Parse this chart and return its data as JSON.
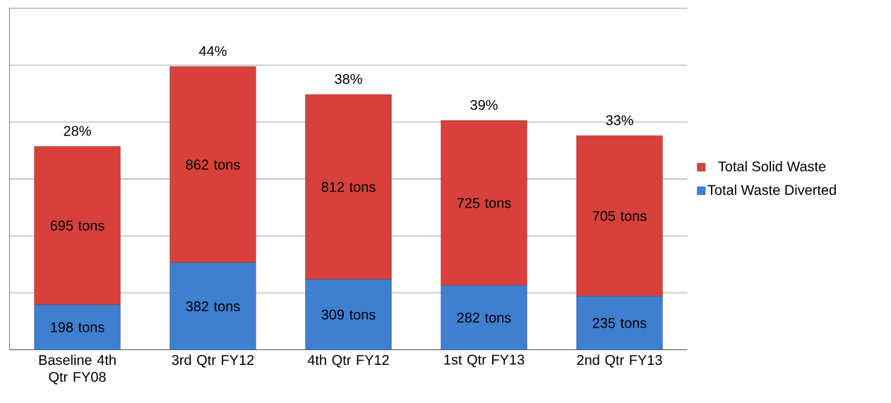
{
  "chart_data": {
    "type": "bar",
    "stacked": true,
    "categories": [
      "Baseline 4th Qtr FY08",
      "3rd Qtr FY12",
      "4th Qtr FY12",
      "1st Qtr FY13",
      "2nd Qtr FY13"
    ],
    "series": [
      {
        "name": "Total Waste Diverted",
        "color": "#3f7fcf",
        "values": [
          198,
          382,
          309,
          282,
          235
        ],
        "value_labels": [
          "198 tons",
          "382 tons",
          "309 tons",
          "282 tons",
          "235 tons"
        ]
      },
      {
        "name": "Total Solid Waste",
        "color": "#d8413b",
        "values": [
          695,
          862,
          812,
          725,
          705
        ],
        "value_labels": [
          "695 tons",
          "862 tons",
          "812 tons",
          "725 tons",
          "705 tons"
        ]
      }
    ],
    "ylim": [
      0,
      1500
    ],
    "yticks": [
      {
        "value": 0,
        "label": null
      },
      {
        "value": 250,
        "label": null
      },
      {
        "value": 500,
        "label": null
      },
      {
        "value": 750,
        "label": null
      },
      {
        "value": 1000,
        "label": null
      },
      {
        "value": 1250,
        "label": null
      },
      {
        "value": 1500,
        "label": null
      }
    ],
    "tick_labels": "x",
    "grid": "y",
    "legend": "right",
    "annotations": [
      "28%",
      "44%",
      "38%",
      "39%",
      "33%"
    ]
  }
}
